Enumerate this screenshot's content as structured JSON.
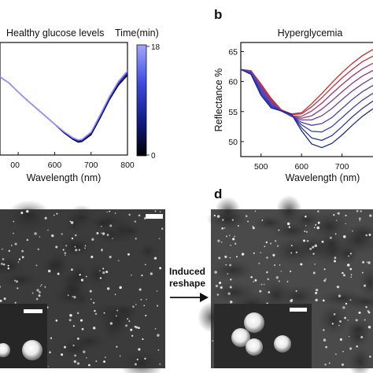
{
  "panels": {
    "b": {
      "letter": "b"
    },
    "d": {
      "letter": "d"
    }
  },
  "arrow": {
    "line1": "Induced",
    "line2": "reshape"
  },
  "chart_data": [
    {
      "type": "line",
      "title": "Healthy glucose levels",
      "xlabel": "Wavelength (nm)",
      "ylabel": "",
      "xlim": [
        450,
        800
      ],
      "ylim": [
        47,
        67
      ],
      "x_ticks": [
        "00",
        "600",
        "700",
        "800"
      ],
      "colorbar": {
        "title": "Time(min)",
        "min": "0",
        "max": "18",
        "colors": [
          "#000000",
          "#1a1aa0",
          "#4a4ae8",
          "#9a9aff"
        ]
      },
      "x": [
        450,
        475,
        500,
        525,
        550,
        575,
        600,
        625,
        650,
        665,
        675,
        700,
        725,
        750,
        775,
        800
      ],
      "series": [
        {
          "values": [
            60.9,
            59.8,
            58.2,
            56.7,
            55.3,
            53.9,
            52.5,
            51.0,
            49.8,
            49.3,
            49.4,
            50.6,
            53.6,
            56.8,
            59.4,
            61.2
          ]
        },
        {
          "values": [
            60.9,
            59.8,
            58.2,
            56.7,
            55.3,
            53.9,
            52.5,
            51.1,
            49.9,
            49.5,
            49.6,
            50.8,
            53.8,
            57.0,
            59.7,
            61.5
          ]
        },
        {
          "values": [
            60.9,
            59.8,
            58.2,
            56.7,
            55.3,
            53.9,
            52.5,
            51.2,
            50.0,
            49.6,
            49.7,
            51.0,
            54.0,
            57.2,
            59.9,
            61.8
          ]
        },
        {
          "values": [
            60.9,
            59.8,
            58.2,
            56.7,
            55.3,
            53.9,
            52.5,
            51.2,
            50.1,
            49.7,
            49.8,
            51.1,
            54.2,
            57.4,
            60.1,
            62.0
          ]
        }
      ]
    },
    {
      "type": "line",
      "title": "Hyperglycemia",
      "xlabel": "Wavelength (nm)",
      "ylabel": "Reflectance %",
      "xlim": [
        450,
        790
      ],
      "ylim": [
        47.5,
        66.5
      ],
      "x_ticks": [
        "500",
        "600",
        "700"
      ],
      "y_ticks": [
        "50",
        "55",
        "60",
        "65"
      ],
      "x": [
        450,
        475,
        500,
        525,
        550,
        575,
        600,
        625,
        650,
        675,
        700,
        725,
        750,
        775,
        790
      ],
      "series": [
        {
          "color": "#d02828",
          "values": [
            62.0,
            61.8,
            59.6,
            57.2,
            55.3,
            54.6,
            54.8,
            56.3,
            58.0,
            59.8,
            61.5,
            63.0,
            64.3,
            65.3,
            65.7
          ]
        },
        {
          "color": "#c0304a",
          "values": [
            62.0,
            61.8,
            59.5,
            57.0,
            55.2,
            54.5,
            54.6,
            55.8,
            57.3,
            59.0,
            60.6,
            62.0,
            63.3,
            64.2,
            64.6
          ]
        },
        {
          "color": "#a8366a",
          "values": [
            62.0,
            61.7,
            59.3,
            56.8,
            55.1,
            54.3,
            54.2,
            55.1,
            56.4,
            58.0,
            59.5,
            60.9,
            62.1,
            63.0,
            63.4
          ]
        },
        {
          "color": "#8c3c88",
          "values": [
            62.0,
            61.7,
            59.1,
            56.6,
            55.1,
            54.2,
            53.9,
            54.3,
            55.4,
            56.8,
            58.3,
            59.7,
            60.9,
            61.8,
            62.2
          ]
        },
        {
          "color": "#6c40a0",
          "values": [
            62.0,
            61.6,
            58.9,
            56.4,
            55.1,
            54.2,
            53.6,
            53.6,
            54.3,
            55.5,
            57.0,
            58.4,
            59.6,
            60.6,
            61.0
          ]
        },
        {
          "color": "#5040b4",
          "values": [
            62.0,
            61.5,
            58.6,
            56.2,
            55.1,
            54.3,
            53.2,
            52.7,
            53.0,
            54.0,
            55.5,
            57.0,
            58.3,
            59.3,
            59.8
          ]
        },
        {
          "color": "#3840c4",
          "values": [
            62.0,
            61.4,
            58.3,
            56.0,
            55.1,
            54.4,
            52.8,
            51.7,
            51.6,
            52.5,
            54.0,
            55.5,
            56.9,
            58.0,
            58.5
          ]
        },
        {
          "color": "#2838b4",
          "values": [
            62.0,
            61.3,
            58.0,
            55.8,
            55.1,
            54.5,
            52.3,
            50.6,
            50.2,
            51.0,
            52.5,
            54.1,
            55.5,
            56.7,
            57.2
          ]
        },
        {
          "color": "#1c2a9c",
          "values": [
            62.0,
            61.2,
            57.7,
            55.6,
            55.1,
            54.6,
            51.8,
            49.6,
            49.0,
            49.7,
            51.1,
            52.7,
            54.2,
            55.4,
            56.0
          ]
        }
      ]
    }
  ]
}
